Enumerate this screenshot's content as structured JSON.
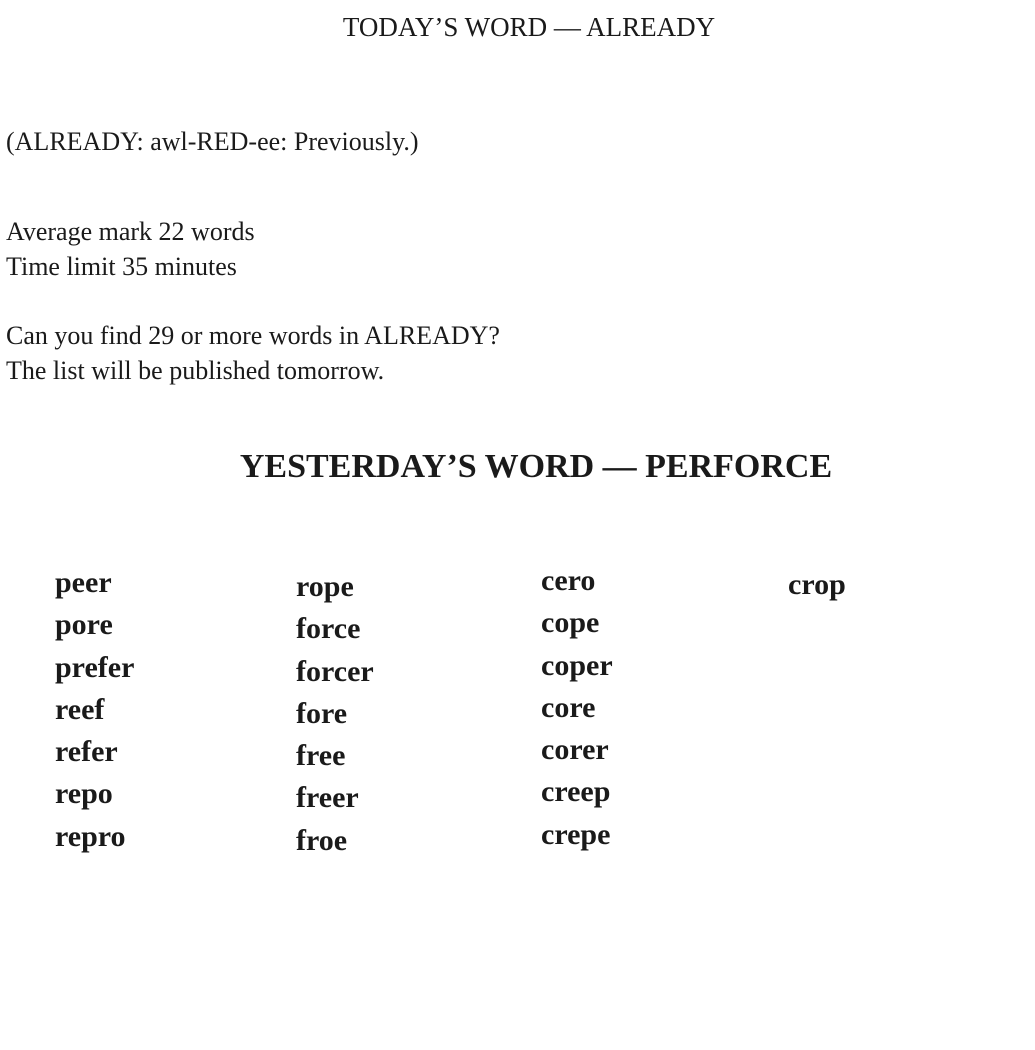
{
  "today_title": "TODAY’S WORD — ALREADY",
  "definition": "(ALREADY: awl-RED-ee: Previously.)",
  "average": "Average mark 22 words",
  "time_limit": "Time limit 35 minutes",
  "challenge": "Can you find 29 or more words in ALREADY?",
  "publish": "The list will be published tomorrow.",
  "yesterday_title": "YESTERDAY’S WORD — PERFORCE",
  "columns": [
    [
      "peer",
      "pore",
      "prefer",
      "reef",
      "refer",
      "repo",
      "repro"
    ],
    [
      "rope",
      "force",
      "forcer",
      "fore",
      "free",
      "freer",
      "froe"
    ],
    [
      "cero",
      "cope",
      "coper",
      "core",
      "corer",
      "creep",
      "crepe"
    ],
    [
      "crop"
    ]
  ]
}
